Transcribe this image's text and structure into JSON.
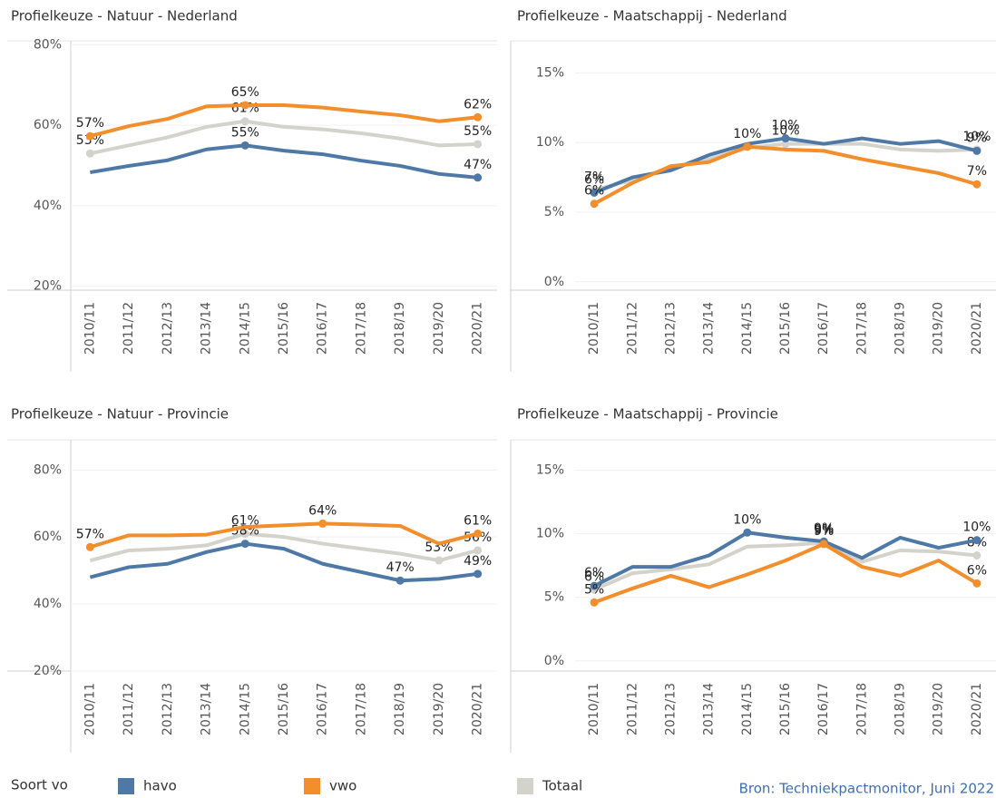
{
  "chart_data": [
    {
      "type": "line",
      "title": "Profielkeuze - Natuur - Nederland",
      "categories": [
        "2010/11",
        "2011/12",
        "2012/13",
        "2013/14",
        "2014/15",
        "2015/16",
        "2016/17",
        "2017/18",
        "2018/19",
        "2019/20",
        "2020/21"
      ],
      "ylim": [
        19,
        81
      ],
      "yticks": [
        {
          "value": 20,
          "label": "20%"
        },
        {
          "value": 40,
          "label": "40%"
        },
        {
          "value": 60,
          "label": "60%"
        },
        {
          "value": 80,
          "label": "80%"
        }
      ],
      "series": [
        {
          "name": "havo",
          "color": "#4e79a7",
          "values": [
            48.3,
            49.9,
            51.3,
            54,
            55,
            53.7,
            52.8,
            51.2,
            49.9,
            47.9,
            47
          ],
          "value_labels": [
            null,
            null,
            null,
            null,
            "55%",
            null,
            null,
            null,
            null,
            null,
            "47%"
          ]
        },
        {
          "name": "vwo",
          "color": "#f28e2b",
          "values": [
            57.3,
            59.8,
            61.6,
            64.7,
            65,
            65,
            64.4,
            63.4,
            62.5,
            61,
            62
          ],
          "value_labels": [
            "57%",
            null,
            null,
            null,
            "65%",
            null,
            null,
            null,
            null,
            null,
            "62%"
          ]
        },
        {
          "name": "Totaal",
          "color": "#d3d3cc",
          "values": [
            53,
            55,
            57,
            59.6,
            61,
            59.6,
            59,
            58,
            56.7,
            55,
            55.3
          ],
          "value_labels": [
            "53%",
            null,
            null,
            null,
            "61%",
            null,
            null,
            null,
            null,
            null,
            "55%"
          ]
        }
      ]
    },
    {
      "type": "line",
      "title": "Profielkeuze - Maatschappij - Nederland",
      "categories": [
        "2010/11",
        "2011/12",
        "2012/13",
        "2013/14",
        "2014/15",
        "2015/16",
        "2016/17",
        "2017/18",
        "2018/19",
        "2019/20",
        "2020/21"
      ],
      "ylim": [
        -0.6,
        17.3
      ],
      "yticks": [
        {
          "value": 0,
          "label": "0%"
        },
        {
          "value": 5,
          "label": "5%"
        },
        {
          "value": 10,
          "label": "10%"
        },
        {
          "value": 15,
          "label": "15%"
        }
      ],
      "series": [
        {
          "name": "havo",
          "color": "#4e79a7",
          "values": [
            6.4,
            7.5,
            8,
            9.1,
            9.9,
            10.3,
            9.9,
            10.3,
            9.9,
            10.1,
            9.4
          ],
          "value_labels": [
            "6%",
            null,
            null,
            null,
            null,
            "10%",
            null,
            null,
            null,
            null,
            "9%"
          ]
        },
        {
          "name": "vwo",
          "color": "#f28e2b",
          "values": [
            5.6,
            7.1,
            8.3,
            8.6,
            9.7,
            9.5,
            9.4,
            8.8,
            8.3,
            7.8,
            7
          ],
          "value_labels": [
            "6%",
            null,
            null,
            null,
            "10%",
            null,
            null,
            null,
            null,
            null,
            "7%"
          ]
        },
        {
          "name": "Totaal",
          "color": "#d3d3cc",
          "values": [
            6.6,
            7.3,
            8.2,
            8.8,
            9.6,
            9.9,
            9.9,
            9.9,
            9.5,
            9.4,
            9.5
          ],
          "value_labels": [
            "7%",
            null,
            null,
            null,
            null,
            "10%",
            null,
            null,
            null,
            null,
            "10%"
          ]
        }
      ]
    },
    {
      "type": "line",
      "title": "Profielkeuze - Natuur - Provincie",
      "categories": [
        "2010/11",
        "2011/12",
        "2012/13",
        "2013/14",
        "2014/15",
        "2015/16",
        "2016/17",
        "2017/18",
        "2018/19",
        "2019/20",
        "2020/21"
      ],
      "ylim": [
        20,
        89
      ],
      "yticks": [
        {
          "value": 20,
          "label": "20%"
        },
        {
          "value": 40,
          "label": "40%"
        },
        {
          "value": 60,
          "label": "60%"
        },
        {
          "value": 80,
          "label": "80%"
        }
      ],
      "series": [
        {
          "name": "havo",
          "color": "#4e79a7",
          "values": [
            48,
            51,
            52,
            55.5,
            58,
            56.5,
            52,
            49.5,
            47,
            47.5,
            49
          ],
          "value_labels": [
            null,
            null,
            null,
            null,
            "58%",
            null,
            null,
            null,
            "47%",
            null,
            "49%"
          ]
        },
        {
          "name": "vwo",
          "color": "#f28e2b",
          "values": [
            57,
            60.5,
            60.5,
            60.7,
            63,
            63.5,
            64,
            63.7,
            63.3,
            58,
            61
          ],
          "value_labels": [
            "57%",
            null,
            null,
            null,
            null,
            null,
            "64%",
            null,
            null,
            null,
            "61%"
          ]
        },
        {
          "name": "Totaal",
          "color": "#d3d3cc",
          "values": [
            53,
            56,
            56.5,
            57.5,
            61,
            60,
            58,
            56.5,
            55,
            53,
            56
          ],
          "value_labels": [
            null,
            null,
            null,
            null,
            "61%",
            null,
            null,
            null,
            null,
            "53%",
            "56%"
          ]
        }
      ]
    },
    {
      "type": "line",
      "title": "Profielkeuze - Maatschappij - Provincie",
      "categories": [
        "2010/11",
        "2011/12",
        "2012/13",
        "2013/14",
        "2014/15",
        "2015/16",
        "2016/17",
        "2017/18",
        "2018/19",
        "2019/20",
        "2020/21"
      ],
      "ylim": [
        -0.8,
        17.4
      ],
      "yticks": [
        {
          "value": 0,
          "label": "0%"
        },
        {
          "value": 5,
          "label": "5%"
        },
        {
          "value": 10,
          "label": "10%"
        },
        {
          "value": 15,
          "label": "15%"
        }
      ],
      "series": [
        {
          "name": "havo",
          "color": "#4e79a7",
          "values": [
            5.9,
            7.4,
            7.4,
            8.3,
            10.1,
            9.7,
            9.4,
            8.1,
            9.7,
            8.9,
            9.5
          ],
          "value_labels": [
            "6%",
            null,
            null,
            null,
            "10%",
            null,
            "9%",
            null,
            null,
            null,
            "10%"
          ]
        },
        {
          "name": "vwo",
          "color": "#f28e2b",
          "values": [
            4.6,
            5.7,
            6.7,
            5.8,
            6.8,
            7.9,
            9.2,
            7.4,
            6.7,
            7.9,
            6.1
          ],
          "value_labels": [
            "5%",
            null,
            null,
            null,
            null,
            null,
            "9%",
            null,
            null,
            null,
            "6%"
          ]
        },
        {
          "name": "Totaal",
          "color": "#d3d3cc",
          "values": [
            5.6,
            6.9,
            7.2,
            7.6,
            9,
            9.1,
            9.3,
            7.8,
            8.7,
            8.6,
            8.3
          ],
          "value_labels": [
            "6%",
            null,
            null,
            null,
            null,
            null,
            "9%",
            null,
            null,
            null,
            "8%"
          ]
        }
      ]
    }
  ],
  "legend_title": "Soort vo",
  "source": "Bron: Techniekpactmonitor, Juni 2022"
}
